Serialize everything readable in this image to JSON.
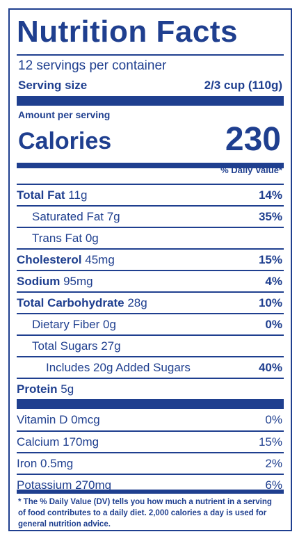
{
  "title": "Nutrition Facts",
  "servings_per_container": "12 servings per container",
  "serving_size": {
    "label": "Serving size",
    "value": "2/3 cup (110g)"
  },
  "amount_per_serving": "Amount per serving",
  "calories": {
    "label": "Calories",
    "value": "230"
  },
  "daily_value_header": "% Daily Value*",
  "nutrients": [
    {
      "name": "Total Fat",
      "amount": " 11g",
      "dv": "14%"
    },
    {
      "name": "Saturated Fat 7g",
      "amount": "",
      "dv": "35%"
    },
    {
      "name": "Trans Fat 0g",
      "amount": "",
      "dv": ""
    },
    {
      "name": "Cholesterol",
      "amount": " 45mg",
      "dv": "15%"
    },
    {
      "name": "Sodium",
      "amount": " 95mg",
      "dv": "4%"
    },
    {
      "name": "Total Carbohydrate",
      "amount": " 28g",
      "dv": "10%"
    },
    {
      "name": "Dietary Fiber 0g",
      "amount": "",
      "dv": "0%"
    },
    {
      "name": "Total Sugars 27g",
      "amount": "",
      "dv": ""
    },
    {
      "name": "Includes 20g Added Sugars",
      "amount": "",
      "dv": "40%"
    },
    {
      "name": "Protein",
      "amount": " 5g",
      "dv": ""
    }
  ],
  "vitamins": [
    {
      "name": "Vitamin D 0mcg",
      "dv": "0%"
    },
    {
      "name": "Calcium 170mg",
      "dv": "15%"
    },
    {
      "name": "Iron 0.5mg",
      "dv": "2%"
    },
    {
      "name": "Potassium 270mg",
      "dv": "6%"
    }
  ],
  "footnote": "* The % Daily Value (DV) tells you how much a nutrient in a serving of food contributes to a daily diet. 2,000 calories a day is used for general nutrition advice.",
  "colors": {
    "ink": "#1f3f8f",
    "background": "#ffffff"
  }
}
